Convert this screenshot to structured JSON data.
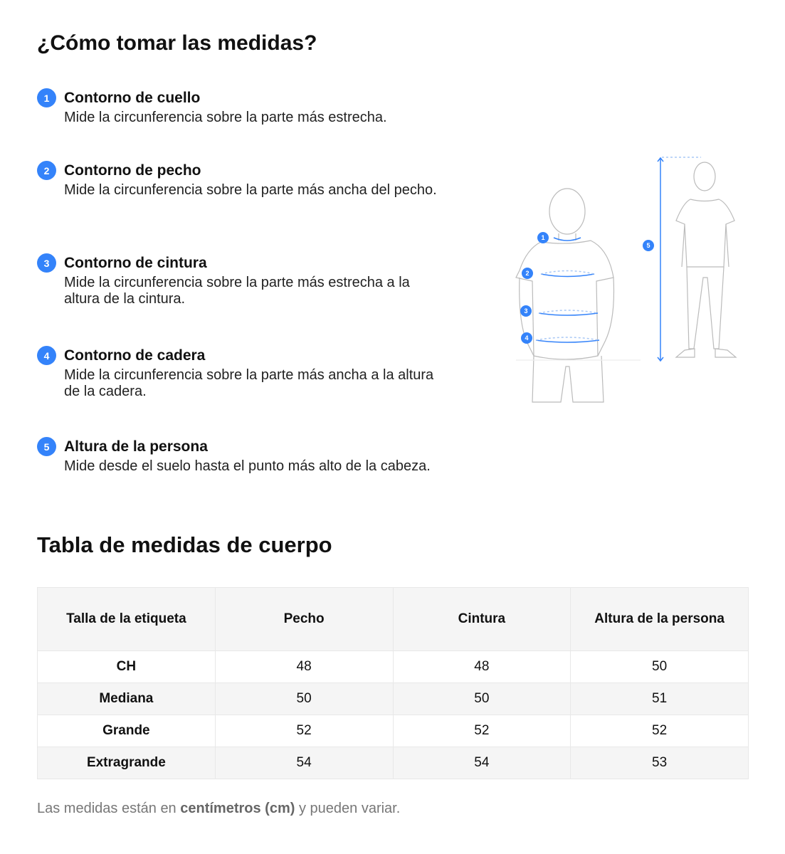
{
  "title": "¿Cómo tomar las medidas?",
  "accent_color": "#3483fa",
  "steps": [
    {
      "number": "1",
      "title": "Contorno de cuello",
      "description": "Mide la circunferencia sobre la parte más estrecha."
    },
    {
      "number": "2",
      "title": "Contorno de pecho",
      "description": "Mide la circunferencia sobre la parte más ancha del pecho."
    },
    {
      "number": "3",
      "title": "Contorno de cintura",
      "description": "Mide la circunferencia sobre la parte más estrecha a la altura de la cintura."
    },
    {
      "number": "4",
      "title": "Contorno de cadera",
      "description": "Mide la circunferencia sobre la parte más ancha a la altura de la cadera."
    },
    {
      "number": "5",
      "title": "Altura de la persona",
      "description": "Mide desde el suelo hasta el punto más alto de la cabeza."
    }
  ],
  "illustration": {
    "markers": [
      "1",
      "2",
      "3",
      "4",
      "5"
    ]
  },
  "table_title": "Tabla de medidas de cuerpo",
  "table": {
    "headers": [
      "Talla de la etiqueta",
      "Pecho",
      "Cintura",
      "Altura de la persona"
    ],
    "rows": [
      [
        "CH",
        "48",
        "48",
        "50"
      ],
      [
        "Mediana",
        "50",
        "50",
        "51"
      ],
      [
        "Grande",
        "52",
        "52",
        "52"
      ],
      [
        "Extragrande",
        "54",
        "54",
        "53"
      ]
    ]
  },
  "footnote": {
    "before": "Las medidas están en ",
    "bold": "centímetros (cm)",
    "after": " y pueden variar."
  }
}
